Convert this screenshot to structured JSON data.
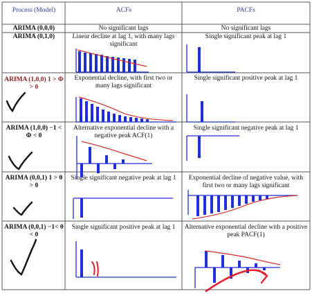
{
  "header": {
    "process": "Process (Model)",
    "acf": "ACFs",
    "pacf": "PACFs"
  },
  "rows": [
    {
      "model": "ARIMA (0,0,0)",
      "acf": "No significant lags",
      "pacf": "No significant lags"
    },
    {
      "model": "ARIMA (0,1,0)",
      "acf": "Linear decline at lag 1, with many lags significant",
      "pacf": "Single significant peak at lag 1"
    },
    {
      "model": "ARIMA (1,0,0) 1 > Φ > 0",
      "acf": "Exponential decline, with first two or many lags significant",
      "pacf": "Single significant positive peak at lag 1"
    },
    {
      "model": "ARIMA (1,0,0) −1 < Φ < 0",
      "acf": "Alternative exponential decline with a negative peak ACF(1)",
      "pacf": "Single significant negative peak at lag 1"
    },
    {
      "model": "ARIMA (0,0,1) 1 > θ > 0",
      "acf": "Single significant negative peak at lag 1",
      "pacf": "Exponential decline of negative value, with first two or many lags significant"
    },
    {
      "model": "ARIMA (0,0,1) −1< θ < 0",
      "acf": "Single significant positive peak at lag 1",
      "pacf": "Alternative exponential decline with a positive peak PACF(1)"
    }
  ],
  "colors": {
    "bar": "#1f2fd6",
    "axis": "#1f2fd6",
    "curve": "#d62a2a",
    "ink": "#111111",
    "header_text": "#2b3a9b"
  },
  "annotations": {
    "checkmarks": 4,
    "pen_color": "#111111",
    "red_pen_color": "#e0202a"
  }
}
